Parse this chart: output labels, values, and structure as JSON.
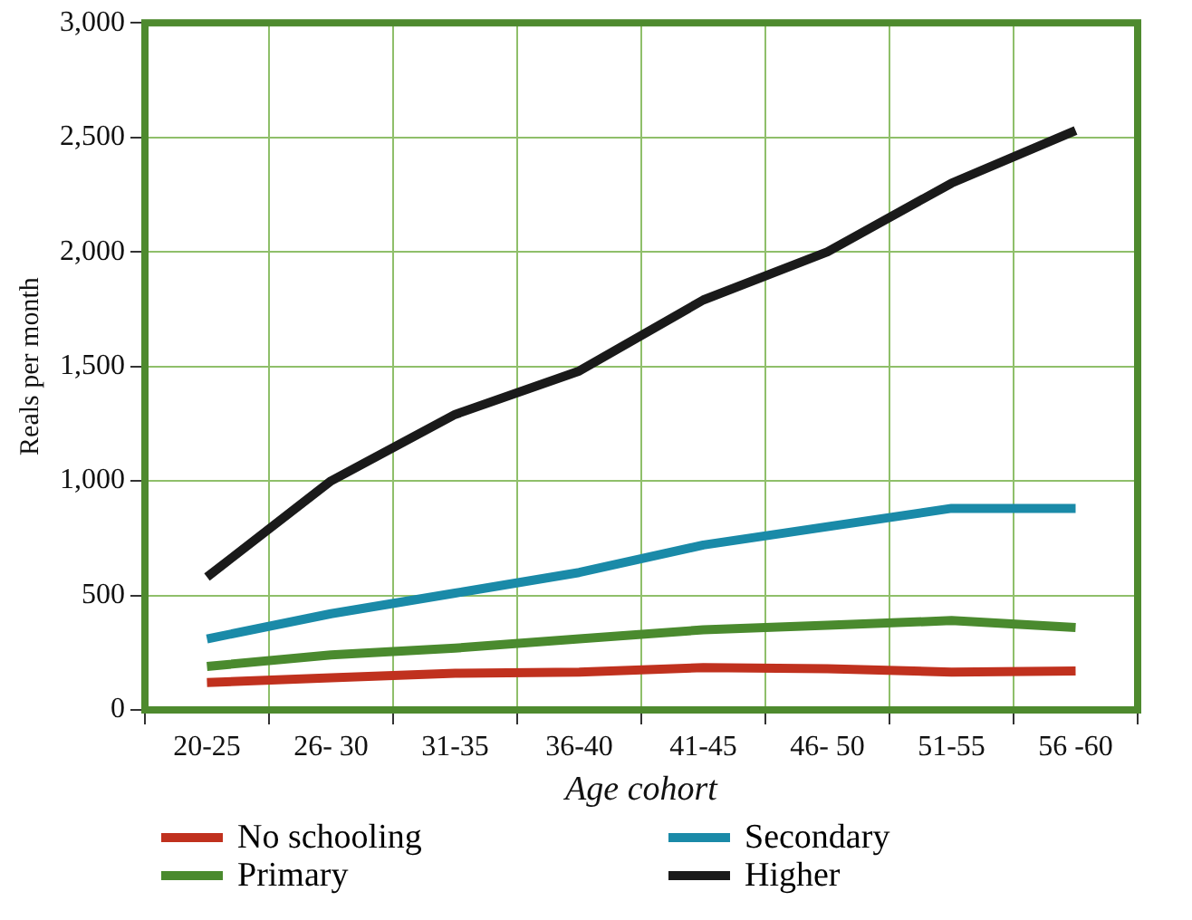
{
  "chart_data": {
    "type": "line",
    "xlabel": "Age cohort",
    "ylabel": "Reals per month",
    "categories": [
      "20-25",
      "26- 30",
      "31-35",
      "36-40",
      "41-45",
      "46- 50",
      "51-55",
      "56 -60"
    ],
    "series": [
      {
        "name": "No schooling",
        "color": "#c0311e",
        "values": [
          120,
          140,
          160,
          165,
          185,
          180,
          165,
          170
        ]
      },
      {
        "name": "Primary",
        "color": "#4a8a2e",
        "values": [
          190,
          240,
          270,
          310,
          350,
          370,
          390,
          360
        ]
      },
      {
        "name": "Secondary",
        "color": "#1a8aa8",
        "values": [
          310,
          420,
          510,
          600,
          720,
          800,
          880,
          880
        ]
      },
      {
        "name": "Higher",
        "color": "#1a1a1a",
        "values": [
          580,
          1000,
          1290,
          1480,
          1790,
          2000,
          2300,
          2530
        ]
      }
    ],
    "ylim": [
      0,
      3000
    ],
    "yticks": [
      0,
      500,
      {
        "value": 1000,
        "label": "1,000"
      },
      {
        "value": 1500,
        "label": "1,500"
      },
      {
        "value": 2000,
        "label": "2,000"
      },
      {
        "value": 2500,
        "label": "2,500"
      },
      {
        "value": 3000,
        "label": "3,000"
      }
    ],
    "grid": true,
    "legend": "bottom",
    "marker": "none",
    "line_style": "solid"
  }
}
